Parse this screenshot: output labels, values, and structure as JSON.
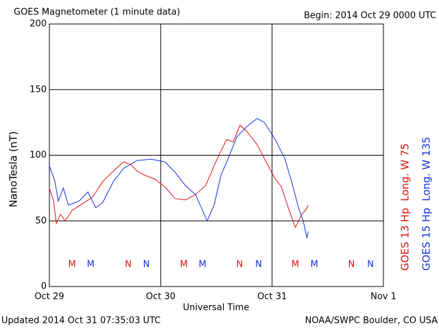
{
  "chart_data": {
    "type": "line",
    "title": "GOES Magnetometer (1 minute data)",
    "subtitle": "Begin:  2014 Oct 29 0000 UTC",
    "footer_left": "Updated 2014 Oct 31 07:35:03 UTC",
    "footer_right": "NOAA/SWPC Boulder, CO USA",
    "xlabel": "Universal Time",
    "ylabel": "NanoTesla (nT)",
    "xlim": [
      0,
      72
    ],
    "xticks": [
      {
        "value": 0,
        "label": "Oct 29"
      },
      {
        "value": 24,
        "label": "Oct 30"
      },
      {
        "value": 48,
        "label": "Oct 31"
      },
      {
        "value": 72,
        "label": "Nov 1"
      }
    ],
    "ylim": [
      0,
      200
    ],
    "yticks": [
      0,
      50,
      100,
      150,
      200
    ],
    "grid": true,
    "series": [
      {
        "name": "GOES 13 Hp  Long. W 75",
        "color": "#e01010",
        "x": [
          0,
          0.9,
          1.5,
          2.4,
          3.4,
          4.9,
          7.1,
          9.3,
          11.5,
          13.8,
          16,
          17.5,
          18.9,
          20.4,
          22.6,
          24.9,
          27.1,
          29.3,
          31.5,
          33.7,
          36,
          38.2,
          39.6,
          41.1,
          42.6,
          44.8,
          47,
          48.5,
          50,
          51.5,
          53,
          54.4,
          55.2,
          55.8
        ],
        "values": [
          75,
          65,
          48,
          55,
          50,
          58,
          63,
          68,
          80,
          88,
          95,
          93,
          88,
          85,
          82,
          76,
          67,
          66,
          70,
          77,
          96,
          112,
          110,
          123,
          118,
          108,
          93,
          83,
          76,
          60,
          45,
          55,
          58,
          62
        ]
      },
      {
        "name": "GOES 15 Hp  Long. W 135",
        "color": "#1030e0",
        "x": [
          0,
          1.2,
          1.9,
          3,
          4.1,
          6.4,
          8.3,
          10,
          11.5,
          13.8,
          16,
          18.9,
          21.9,
          24.9,
          27.1,
          29.3,
          31.5,
          33,
          34,
          35.5,
          37,
          38.6,
          40.4,
          42.6,
          44.8,
          46.3,
          48.5,
          50.7,
          52.2,
          53.7,
          54.7,
          55.5,
          55.8
        ],
        "values": [
          92,
          80,
          65,
          75,
          62,
          65,
          72,
          60,
          64,
          80,
          90,
          96,
          97,
          95,
          87,
          77,
          70,
          58,
          50,
          62,
          85,
          98,
          114,
          122,
          128,
          125,
          113,
          98,
          80,
          60,
          50,
          37,
          42
        ]
      }
    ],
    "annotations": [
      {
        "text": "M",
        "x": 4.9,
        "color": "#e01010"
      },
      {
        "text": "M",
        "x": 8.9,
        "color": "#1030e0"
      },
      {
        "text": "N",
        "x": 17,
        "color": "#e01010"
      },
      {
        "text": "N",
        "x": 20.9,
        "color": "#1030e0"
      },
      {
        "text": "M",
        "x": 29,
        "color": "#e01010"
      },
      {
        "text": "M",
        "x": 33,
        "color": "#1030e0"
      },
      {
        "text": "N",
        "x": 41,
        "color": "#e01010"
      },
      {
        "text": "N",
        "x": 45.1,
        "color": "#1030e0"
      },
      {
        "text": "M",
        "x": 53,
        "color": "#e01010"
      },
      {
        "text": "M",
        "x": 57.1,
        "color": "#1030e0"
      },
      {
        "text": "N",
        "x": 65.1,
        "color": "#e01010"
      },
      {
        "text": "N",
        "x": 69.2,
        "color": "#1030e0"
      }
    ]
  }
}
